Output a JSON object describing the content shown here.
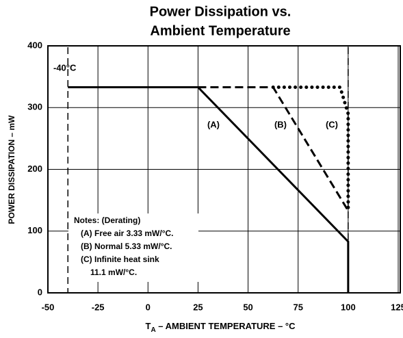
{
  "chart_data": {
    "type": "line",
    "title": [
      "Power Dissipation vs.",
      "Ambient Temperature"
    ],
    "xlabel": {
      "main": "T",
      "sub": "A",
      "rest": " – AMBIENT TEMPERATURE – °C"
    },
    "ylabel": "POWER DISSIPATION – mW",
    "xlim": [
      -50,
      125
    ],
    "ylim": [
      0,
      400
    ],
    "xticks": [
      -50,
      -25,
      0,
      25,
      50,
      75,
      100,
      125
    ],
    "yticks": [
      0,
      100,
      200,
      300,
      400
    ],
    "grid": true,
    "reference_lines": [
      -40,
      100
    ],
    "reference_label": "-40°C",
    "series": [
      {
        "name": "(A)",
        "color": "#000000",
        "style": "solid",
        "x": [
          -40,
          25,
          100,
          100
        ],
        "values": [
          333,
          333,
          83,
          0
        ]
      },
      {
        "name": "(B)",
        "color": "#000000",
        "style": "dashed",
        "x": [
          25,
          62.5,
          100
        ],
        "values": [
          333,
          333,
          133
        ]
      },
      {
        "name": "(C)",
        "color": "#000000",
        "style": "dotted",
        "x": [
          62.5,
          96,
          100,
          100
        ],
        "values": [
          333,
          333,
          290,
          130
        ]
      }
    ],
    "notes": [
      "Notes:  (Derating)",
      "(A)  Free air 3.33 mW/°C.",
      "(B)  Normal 5.33 mW/°C.",
      "(C)  Infinite heat sink",
      "11.1 mW/°C."
    ]
  }
}
